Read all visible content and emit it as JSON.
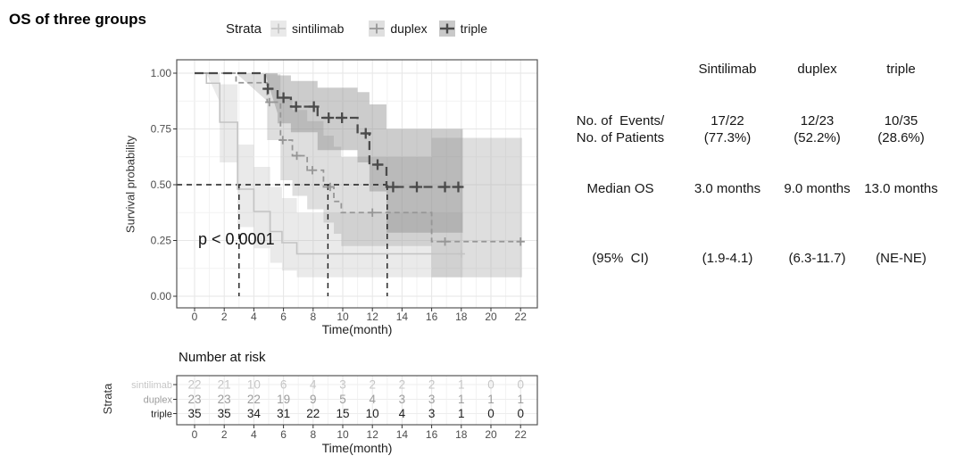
{
  "title": "OS of three groups",
  "p_value": "p < 0.0001",
  "legend": {
    "title": "Strata",
    "items": [
      {
        "label": "sintilimab",
        "box": "#e9e9e9",
        "stroke": "#c3c3c3",
        "lw": 1.6
      },
      {
        "label": "duplex",
        "box": "#dfdfdf",
        "stroke": "#989898",
        "lw": 1.8
      },
      {
        "label": "triple",
        "box": "#c9c9c9",
        "stroke": "#4a4a4a",
        "lw": 2.4
      }
    ]
  },
  "chart_data": {
    "type": "line",
    "subtype": "kaplan-meier-step",
    "title": "OS of three groups",
    "xlabel": "Time(month)",
    "ylabel": "Survival probability",
    "xlim": [
      0,
      22
    ],
    "ylim": [
      0,
      1
    ],
    "xticks": [
      0,
      2,
      4,
      6,
      8,
      10,
      12,
      14,
      16,
      18,
      20,
      22
    ],
    "ytick_labels": [
      "0.00",
      "0.25",
      "0.50",
      "0.75",
      "1.00"
    ],
    "yticks": [
      0,
      0.25,
      0.5,
      0.75,
      1.0
    ],
    "grid": true,
    "legend_position": "top",
    "annotation": "p < 0.0001",
    "median_lines": {
      "survival": 0.5,
      "times": [
        3,
        9,
        13
      ]
    },
    "series": [
      {
        "name": "sintilimab",
        "color": "#c3c3c3",
        "width": 1.6,
        "dash": "",
        "end": 18.1,
        "steps": [
          [
            0,
            1.0
          ],
          [
            0.8,
            0.955
          ],
          [
            1.7,
            0.78
          ],
          [
            2.9,
            0.48
          ],
          [
            4.0,
            0.38
          ],
          [
            5.1,
            0.29
          ],
          [
            5.9,
            0.24
          ],
          [
            6.9,
            0.19
          ]
        ],
        "censors": [
          [
            18.0,
            0.19
          ]
        ],
        "ribbon": [
          [
            0.8,
            1.0,
            0.87
          ],
          [
            1.7,
            0.95,
            0.6
          ],
          [
            2.9,
            0.68,
            0.31
          ],
          [
            4.0,
            0.58,
            0.215
          ],
          [
            5.1,
            0.49,
            0.15
          ],
          [
            5.9,
            0.44,
            0.115
          ],
          [
            6.9,
            0.375,
            0.085
          ]
        ],
        "ribbon_color": "#bbbbbb",
        "ribbon_opacity": 0.3
      },
      {
        "name": "duplex",
        "color": "#969696",
        "width": 1.8,
        "dash": "6 4",
        "end": 22.1,
        "steps": [
          [
            0,
            1.0
          ],
          [
            2.8,
            0.957
          ],
          [
            4.9,
            0.87
          ],
          [
            5.8,
            0.7
          ],
          [
            6.6,
            0.63
          ],
          [
            7.6,
            0.565
          ],
          [
            8.7,
            0.49
          ],
          [
            9.4,
            0.425
          ],
          [
            9.9,
            0.375
          ],
          [
            16.0,
            0.245
          ]
        ],
        "censors": [
          [
            5.05,
            0.87
          ],
          [
            5.95,
            0.7
          ],
          [
            6.9,
            0.63
          ],
          [
            7.95,
            0.565
          ],
          [
            9.15,
            0.49
          ],
          [
            12.0,
            0.375
          ],
          [
            16.9,
            0.245
          ],
          [
            22.0,
            0.245
          ]
        ],
        "ribbon": [
          [
            2.8,
            1.0,
            0.875
          ],
          [
            4.9,
            0.995,
            0.7
          ],
          [
            5.8,
            0.885,
            0.52
          ],
          [
            6.6,
            0.835,
            0.45
          ],
          [
            7.6,
            0.785,
            0.39
          ],
          [
            8.7,
            0.72,
            0.33
          ],
          [
            9.4,
            0.67,
            0.28
          ],
          [
            9.9,
            0.625,
            0.225
          ],
          [
            16.0,
            0.71,
            0.085
          ]
        ],
        "ribbon_color": "#a9a9a9",
        "ribbon_opacity": 0.38
      },
      {
        "name": "triple",
        "color": "#4a4a4a",
        "width": 2.3,
        "dash": "10 6",
        "end": 18.1,
        "steps": [
          [
            0,
            1.0
          ],
          [
            4.75,
            0.93
          ],
          [
            5.6,
            0.89
          ],
          [
            6.5,
            0.85
          ],
          [
            8.3,
            0.8
          ],
          [
            11.0,
            0.73
          ],
          [
            11.8,
            0.59
          ],
          [
            12.95,
            0.49
          ]
        ],
        "censors": [
          [
            4.95,
            0.93
          ],
          [
            6.0,
            0.89
          ],
          [
            6.85,
            0.85
          ],
          [
            8.05,
            0.85
          ],
          [
            9.05,
            0.8
          ],
          [
            9.95,
            0.8
          ],
          [
            11.55,
            0.73
          ],
          [
            12.35,
            0.59
          ],
          [
            13.4,
            0.49
          ],
          [
            15.0,
            0.49
          ],
          [
            16.9,
            0.49
          ],
          [
            17.8,
            0.49
          ]
        ],
        "ribbon": [
          [
            4.75,
            1.0,
            0.82
          ],
          [
            5.6,
            0.99,
            0.775
          ],
          [
            6.5,
            0.965,
            0.735
          ],
          [
            8.3,
            0.935,
            0.655
          ],
          [
            11.0,
            0.915,
            0.6
          ],
          [
            11.8,
            0.86,
            0.47
          ],
          [
            12.95,
            0.75,
            0.285
          ]
        ],
        "ribbon_color": "#8f8f8f",
        "ribbon_opacity": 0.45
      }
    ]
  },
  "risk_table": {
    "title": "Number at risk",
    "axis_label": "Strata",
    "xlabel": "Time(month)",
    "times": [
      0,
      2,
      4,
      6,
      8,
      10,
      12,
      14,
      16,
      18,
      20,
      22
    ],
    "rows": [
      {
        "name": "sintilimab",
        "color": "#c6c6c6",
        "values": [
          22,
          21,
          10,
          6,
          4,
          3,
          2,
          2,
          2,
          1,
          0,
          0
        ]
      },
      {
        "name": "duplex",
        "color": "#9c9c9c",
        "values": [
          23,
          23,
          22,
          19,
          9,
          5,
          4,
          3,
          3,
          1,
          1,
          1
        ]
      },
      {
        "name": "triple",
        "color": "#1f1f1f",
        "values": [
          35,
          35,
          34,
          31,
          22,
          15,
          10,
          4,
          3,
          1,
          0,
          0
        ]
      }
    ]
  },
  "stats_table": {
    "columns": [
      "Sintilimab",
      "duplex",
      "triple"
    ],
    "rows": [
      {
        "label": [
          "No. of  Events/",
          "No. of Patients"
        ],
        "values": [
          [
            "17/22",
            "(77.3%)"
          ],
          [
            "12/23",
            "(52.2%)"
          ],
          [
            "10/35",
            "(28.6%)"
          ]
        ]
      },
      {
        "label": [
          "Median OS"
        ],
        "values": [
          [
            "3.0 months"
          ],
          [
            "9.0 months"
          ],
          [
            "13.0 months"
          ]
        ]
      },
      {
        "label": [
          "(95%  CI)"
        ],
        "values": [
          [
            "(1.9-4.1)"
          ],
          [
            "(6.3-11.7)"
          ],
          [
            "(NE-NE)"
          ]
        ]
      }
    ]
  }
}
